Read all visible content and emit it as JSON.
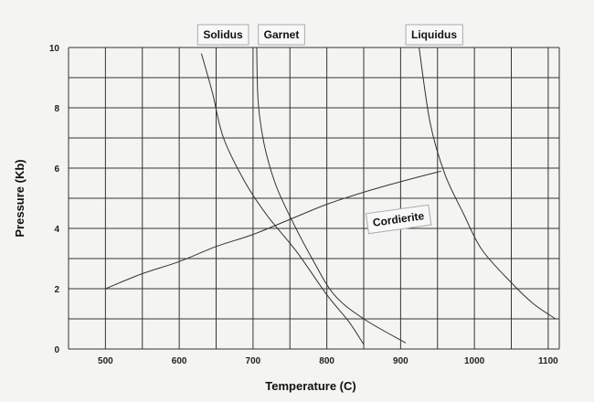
{
  "chart_data": {
    "type": "line",
    "xlabel": "Temperature (C)",
    "ylabel": "Pressure (Kb)",
    "xlim": [
      450,
      1115
    ],
    "ylim": [
      0,
      10
    ],
    "x_ticks": [
      500,
      600,
      700,
      800,
      900,
      1000,
      1100
    ],
    "y_ticks": [
      0,
      2,
      4,
      6,
      8,
      10
    ],
    "x_gridlines": [
      450,
      500,
      550,
      600,
      650,
      700,
      750,
      800,
      850,
      900,
      950,
      1000,
      1050,
      1100
    ],
    "y_gridlines": [
      0,
      1,
      2,
      3,
      4,
      5,
      6,
      7,
      8,
      9,
      10
    ],
    "grid": true,
    "series": [
      {
        "name": "Solidus",
        "points": [
          [
            630,
            9.8
          ],
          [
            645,
            8.5
          ],
          [
            660,
            7.0
          ],
          [
            690,
            5.5
          ],
          [
            720,
            4.4
          ],
          [
            760,
            3.2
          ],
          [
            800,
            1.8
          ],
          [
            830,
            0.9
          ],
          [
            850,
            0.15
          ]
        ]
      },
      {
        "name": "Garnet",
        "points": [
          [
            705,
            10.0
          ],
          [
            707,
            8.2
          ],
          [
            715,
            6.8
          ],
          [
            730,
            5.5
          ],
          [
            750,
            4.4
          ],
          [
            780,
            3.0
          ],
          [
            810,
            1.8
          ],
          [
            850,
            1.0
          ],
          [
            907,
            0.2
          ]
        ]
      },
      {
        "name": "Liquidus",
        "points": [
          [
            925,
            10.0
          ],
          [
            940,
            7.5
          ],
          [
            960,
            5.8
          ],
          [
            985,
            4.5
          ],
          [
            1010,
            3.3
          ],
          [
            1050,
            2.2
          ],
          [
            1080,
            1.5
          ],
          [
            1110,
            1.0
          ]
        ]
      },
      {
        "name": "Cordierite",
        "points": [
          [
            500,
            2.0
          ],
          [
            550,
            2.5
          ],
          [
            600,
            2.9
          ],
          [
            650,
            3.4
          ],
          [
            700,
            3.8
          ],
          [
            750,
            4.3
          ],
          [
            800,
            4.8
          ],
          [
            850,
            5.2
          ],
          [
            900,
            5.55
          ],
          [
            955,
            5.9
          ]
        ]
      }
    ]
  }
}
